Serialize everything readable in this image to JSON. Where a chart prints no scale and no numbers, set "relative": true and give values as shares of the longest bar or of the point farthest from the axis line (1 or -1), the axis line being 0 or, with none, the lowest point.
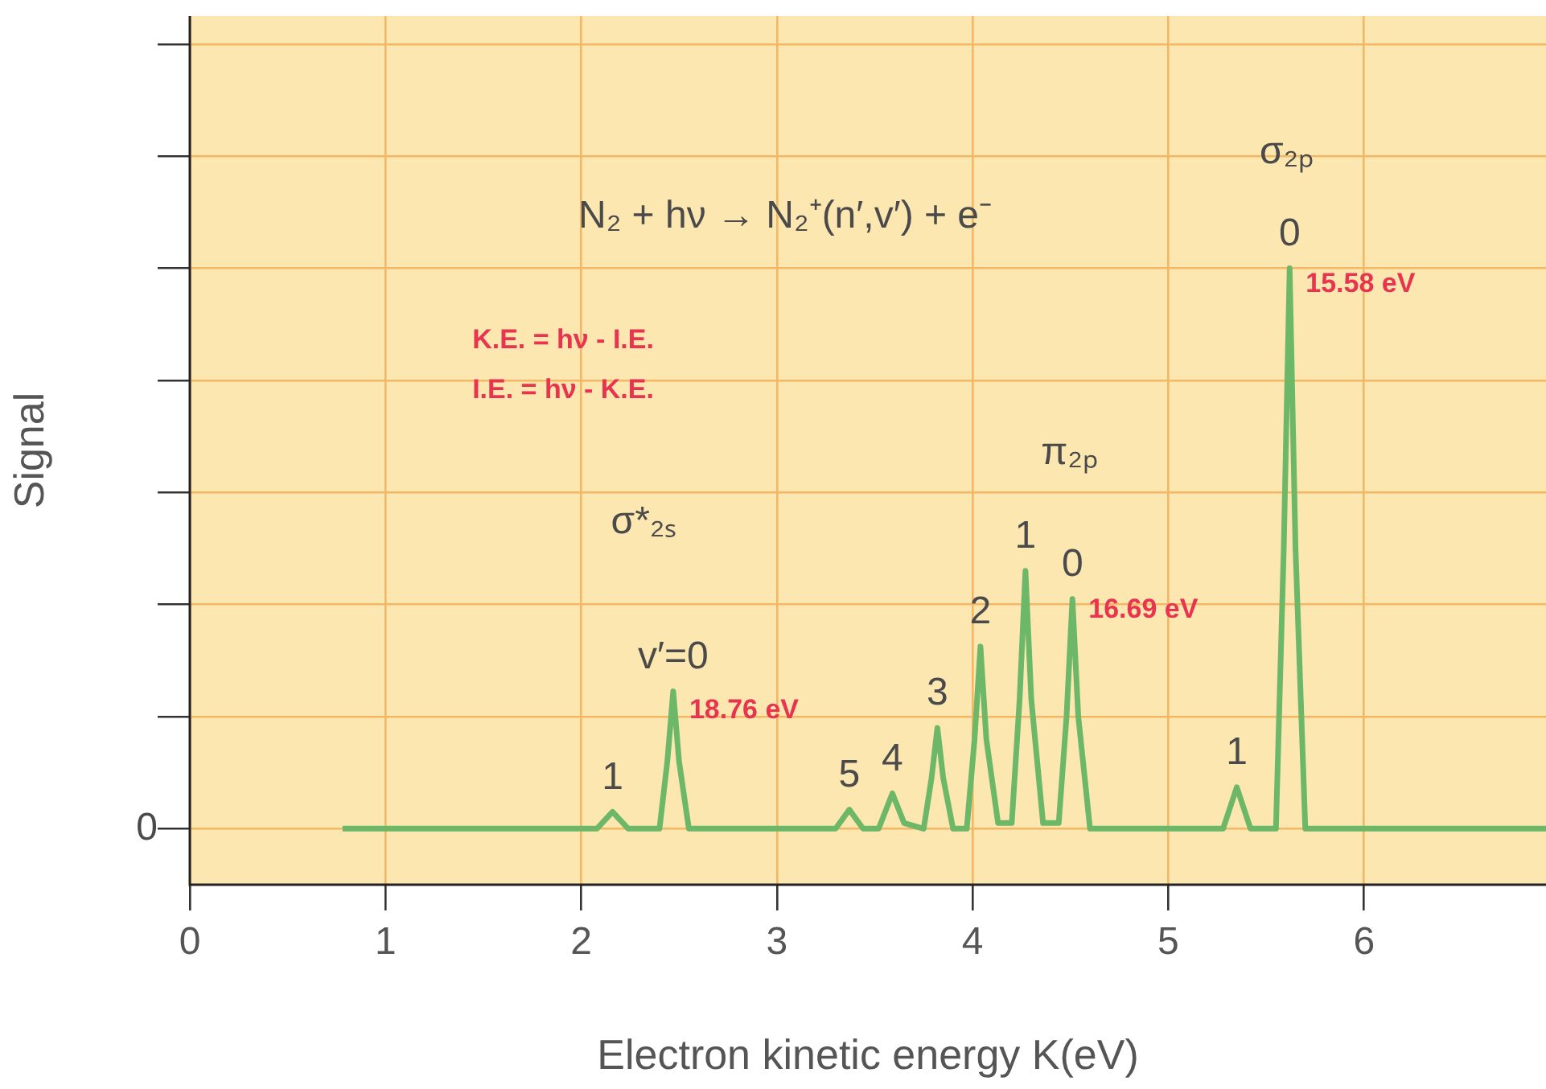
{
  "chart_data": {
    "type": "line",
    "relative": true,
    "xlabel": "Electron kinetic energy K(eV)",
    "ylabel": "Signal",
    "xlim": [
      0,
      6.93
    ],
    "xticks": [
      0,
      1,
      2,
      3,
      4,
      5,
      6
    ],
    "grid": true,
    "legend": false,
    "marker": "none",
    "line_style": "solid",
    "series": [
      {
        "color": "#6cb868",
        "x": [
          0.78,
          2.08,
          2.16,
          2.24,
          2.4,
          2.44,
          2.47,
          2.5,
          2.55,
          3.3,
          3.37,
          3.44,
          3.52,
          3.59,
          3.65,
          3.75,
          3.79,
          3.82,
          3.85,
          3.9,
          3.97,
          4.01,
          4.04,
          4.07,
          4.13,
          4.2,
          4.24,
          4.27,
          4.3,
          4.36,
          4.44,
          4.48,
          4.51,
          4.54,
          4.6,
          5.28,
          5.35,
          5.42,
          5.55,
          5.59,
          5.62,
          5.65,
          5.7,
          6.93
        ],
        "values": [
          0,
          0,
          0.03,
          0,
          0,
          0.12,
          0.245,
          0.12,
          0,
          0,
          0.034,
          0,
          0,
          0.063,
          0.01,
          0,
          0.09,
          0.18,
          0.09,
          0,
          0,
          0.16,
          0.325,
          0.16,
          0.01,
          0.01,
          0.23,
          0.46,
          0.23,
          0.01,
          0.01,
          0.2,
          0.41,
          0.2,
          0,
          0,
          0.074,
          0,
          0,
          0.5,
          1,
          0.5,
          0,
          0
        ]
      }
    ],
    "annotations": [
      "0",
      "N₂ + hν → N₂⁺(n′,v′) + e⁻",
      "K.E. = hν - I.E.",
      "I.E. = hν - K.E.",
      "σ₂ₚ",
      "π₂ₚ",
      "σ*₂ₛ",
      {
        "text": "1",
        "x": 2.16,
        "y": 0.03
      },
      {
        "text": "v′=0",
        "x": 2.47,
        "y": 0.245
      },
      {
        "text": "18.76 eV",
        "x": 2.47,
        "y": 0.245
      },
      {
        "text": "5",
        "x": 3.37,
        "y": 0.034
      },
      {
        "text": "4",
        "x": 3.59,
        "y": 0.063
      },
      {
        "text": "3",
        "x": 3.82,
        "y": 0.18
      },
      {
        "text": "2",
        "x": 4.04,
        "y": 0.325
      },
      {
        "text": "1",
        "x": 4.27,
        "y": 0.46
      },
      {
        "text": "0",
        "x": 4.51,
        "y": 0.41
      },
      {
        "text": "16.69 eV",
        "x": 4.51,
        "y": 0.41
      },
      {
        "text": "1",
        "x": 5.35,
        "y": 0.074
      },
      {
        "text": "0",
        "x": 5.62,
        "y": 1
      },
      {
        "text": "15.58 eV",
        "x": 5.62,
        "y": 1
      }
    ]
  }
}
